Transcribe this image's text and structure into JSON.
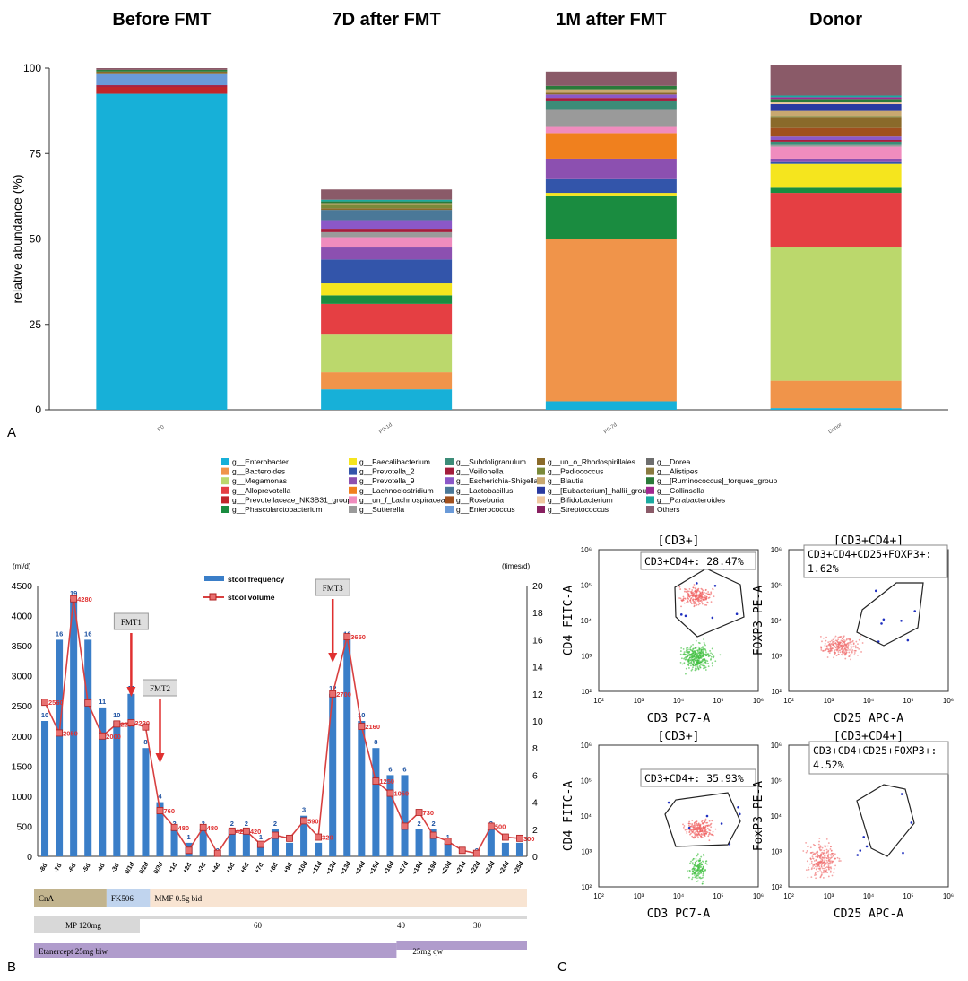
{
  "panel_labels": [
    "A",
    "B",
    "C"
  ],
  "chart_data": [
    {
      "type": "bar",
      "subtype": "stacked-100",
      "column_titles": [
        "Before FMT",
        "7D after FMT",
        "1M after FMT",
        "Donor"
      ],
      "categories": [
        "P0",
        "P0-1d",
        "P0-7d",
        "Donor"
      ],
      "ylabel": "relative abundance (%)",
      "ylim": [
        0,
        100
      ],
      "yticks": [
        0,
        25,
        50,
        75,
        100
      ],
      "legend_position": "below",
      "series": [
        {
          "name": "g__Enterobacter",
          "color": "#17b0d8",
          "values": [
            92.5,
            6,
            2.5,
            0.5
          ]
        },
        {
          "name": "g__Bacteroides",
          "color": "#f0944a",
          "values": [
            0,
            5,
            47.5,
            8
          ]
        },
        {
          "name": "g__Megamonas",
          "color": "#bbd86c",
          "values": [
            0,
            11,
            0,
            39
          ]
        },
        {
          "name": "g__Alloprevotella",
          "color": "#e53f43",
          "values": [
            0,
            9,
            0,
            16
          ]
        },
        {
          "name": "g__Prevotellaceae_NK3B31_group",
          "color": "#c0262b",
          "values": [
            2,
            0,
            0,
            0
          ]
        },
        {
          "name": "g__Phascolarctobacterium",
          "color": "#1a8c40",
          "values": [
            0,
            2.5,
            12.5,
            1.5
          ]
        },
        {
          "name": "g__Faecalibacterium",
          "color": "#f5e51e",
          "values": [
            0,
            3.5,
            1,
            7
          ]
        },
        {
          "name": "g__Prevotella_2",
          "color": "#3355aa",
          "values": [
            0,
            7,
            4,
            0.5
          ]
        },
        {
          "name": "g__Prevotella_9",
          "color": "#8c50b0",
          "values": [
            0,
            3.5,
            6,
            1
          ]
        },
        {
          "name": "g__Lachnoclostridium",
          "color": "#f0801e",
          "values": [
            0,
            0,
            7.5,
            0
          ]
        },
        {
          "name": "g__un_f_Lachnospiraceae",
          "color": "#f08cbe",
          "values": [
            0,
            3,
            1.8,
            3.5
          ]
        },
        {
          "name": "g__Sutterella",
          "color": "#9a9a9a",
          "values": [
            0,
            1.5,
            5,
            0.5
          ]
        },
        {
          "name": "g__Subdoligranulum",
          "color": "#3c8c78",
          "values": [
            0,
            0,
            2.5,
            1
          ]
        },
        {
          "name": "g__Veillonella",
          "color": "#a31c3c",
          "values": [
            0.5,
            1,
            1,
            0.5
          ]
        },
        {
          "name": "g__Escherichia-Shigella",
          "color": "#8b58c8",
          "values": [
            0,
            2.5,
            1,
            1
          ]
        },
        {
          "name": "g__Lactobacillus",
          "color": "#4a7898",
          "values": [
            0,
            3,
            0,
            0
          ]
        },
        {
          "name": "g__Roseburia",
          "color": "#a0501e",
          "values": [
            0,
            0,
            0,
            2.5
          ]
        },
        {
          "name": "g__Enterococcus",
          "color": "#6a9ad8",
          "values": [
            3.5,
            0,
            0,
            0
          ]
        },
        {
          "name": "g__un_o_Rhodospirillales",
          "color": "#8a6a2a",
          "values": [
            0.5,
            0.5,
            0.5,
            3
          ]
        },
        {
          "name": "g__Pediococcus",
          "color": "#7a8a3a",
          "values": [
            0,
            1,
            0,
            0.5
          ]
        },
        {
          "name": "g__Blautia",
          "color": "#c8a870",
          "values": [
            0,
            0.5,
            1,
            1.5
          ]
        },
        {
          "name": "g__[Eubacterium]_hallii_group",
          "color": "#2a3aa0",
          "values": [
            0,
            0,
            0,
            2
          ]
        },
        {
          "name": "g__Bifidobacterium",
          "color": "#f0c8a0",
          "values": [
            0,
            0,
            0,
            0.5
          ]
        },
        {
          "name": "g__Streptococcus",
          "color": "#882060",
          "values": [
            0,
            0,
            0,
            0
          ]
        },
        {
          "name": "g__Dorea",
          "color": "#6e6e6e",
          "values": [
            0,
            0,
            0,
            0
          ]
        },
        {
          "name": "g__Alistipes",
          "color": "#8a7a40",
          "values": [
            0,
            0,
            0,
            0
          ]
        },
        {
          "name": "g__[Ruminococcus]_torques_group",
          "color": "#2a7a3a",
          "values": [
            0.5,
            0.5,
            1,
            1
          ]
        },
        {
          "name": "g__Collinsella",
          "color": "#a02890",
          "values": [
            0,
            0,
            0,
            0.5
          ]
        },
        {
          "name": "g__Parabacteroides",
          "color": "#1aaaa0",
          "values": [
            0,
            0.5,
            0,
            0.5
          ]
        },
        {
          "name": "Others",
          "color": "#8a5a68",
          "values": [
            0.5,
            3,
            4.2,
            9
          ]
        }
      ]
    },
    {
      "type": "bar",
      "subtype": "bar-line-combo",
      "legend_position": "top",
      "left_unit": "(ml/d)",
      "right_unit": "(times/d)",
      "ylim_left": [
        0,
        4500
      ],
      "yticks_left": [
        0,
        500,
        1000,
        1500,
        2000,
        2500,
        3000,
        3500,
        4000,
        4500
      ],
      "ylim_right": [
        0,
        20
      ],
      "yticks_right": [
        0,
        2,
        4,
        6,
        8,
        10,
        12,
        14,
        16,
        18,
        20
      ],
      "categories": [
        "-8d",
        "-7d",
        "-6d",
        "-5d",
        "-4d",
        "-3d",
        "0/1d",
        "0/2d",
        "0/3d",
        "+1d",
        "+2d",
        "+3d",
        "+4d",
        "+5d",
        "+6d",
        "+7d",
        "+8d",
        "+9d",
        "+10d",
        "+11d",
        "+12d",
        "+13d",
        "+14d",
        "+15d",
        "+16d",
        "+17d",
        "+18d",
        "+19d",
        "+20d",
        "+21d",
        "+22d",
        "+23d",
        "+24d",
        "+25d"
      ],
      "series": [
        {
          "name": "stool frequency",
          "type": "bar",
          "axis": "right",
          "color": "#3a7ec8",
          "values": [
            10,
            16,
            19,
            16,
            11,
            10,
            12,
            8,
            4,
            2,
            1,
            2,
            0,
            2,
            2,
            1,
            2,
            1,
            3,
            1,
            12,
            16,
            10,
            8,
            6,
            6,
            2,
            2,
            1,
            0,
            0,
            2,
            1,
            1
          ],
          "labels": [
            "10",
            "16",
            "19",
            "16",
            "11",
            "10",
            "12",
            "8",
            "4",
            "2",
            "1",
            "2",
            "0",
            "2",
            "2",
            "1",
            "2",
            "1",
            "3",
            "1",
            "12",
            "16",
            "10",
            "8",
            "6",
            "6",
            "2",
            "2",
            "1",
            "0",
            "0",
            "2",
            "1",
            "1"
          ]
        },
        {
          "name": "stool volume",
          "type": "line",
          "axis": "left",
          "color": "#d84040",
          "values": [
            2560,
            2050,
            4280,
            2550,
            2000,
            2200,
            2220,
            2150,
            760,
            480,
            100,
            480,
            50,
            420,
            420,
            200,
            350,
            300,
            590,
            320,
            2700,
            3650,
            2160,
            1250,
            1050,
            500,
            730,
            350,
            250,
            100,
            50,
            500,
            320,
            300
          ],
          "labels": [
            "2560",
            "2050",
            "4280",
            "",
            "2000",
            "2200",
            "2220",
            "",
            "760",
            "480",
            "",
            "480",
            "",
            "420",
            "420",
            "",
            "",
            "",
            "590",
            "320",
            "2700",
            "3650",
            "2160",
            "1250",
            "1050",
            "",
            "730",
            "",
            "",
            "",
            "",
            "500",
            "",
            "300"
          ]
        }
      ],
      "annotations": [
        {
          "label": "FMT1",
          "index": 6
        },
        {
          "label": "FMT2",
          "index": 8
        },
        {
          "label": "FMT3",
          "index": 20
        }
      ],
      "therapy_bars": [
        {
          "row": 0,
          "segments": [
            {
              "label": "CnA",
              "from": 0,
              "to": 5,
              "color": "#c2b48e"
            },
            {
              "label": "FK506",
              "from": 5,
              "to": 8,
              "color": "#c0d4ee"
            },
            {
              "label": "MMF 0.5g bid",
              "from": 8,
              "to": 34,
              "color": "#f8e4d2"
            }
          ]
        },
        {
          "row": 1,
          "label": "MP 120mg",
          "color": "#d8d8d8",
          "doses": [
            "60",
            "40",
            "30"
          ]
        },
        {
          "row": 2,
          "segments": [
            {
              "label": "Etanercept 25mg biw",
              "from": 0,
              "to": 25,
              "color": "#b09ccc"
            },
            {
              "label": "25mg qw",
              "from": 25,
              "to": 34,
              "color": "#b09ccc"
            }
          ]
        }
      ]
    },
    {
      "type": "scatter",
      "subtype": "flow-cytometry",
      "plots": [
        {
          "title": "[CD3+]",
          "xlabel": "CD3 PC7-A",
          "ylabel": "CD4 FITC-A",
          "gate_label": "CD3+CD4+: 28.47%"
        },
        {
          "title": "[CD3+CD4+]",
          "xlabel": "CD25 APC-A",
          "ylabel": "FOXP3 PE-A",
          "gate_label": "CD3+CD4+CD25+FOXP3+:\n1.62%"
        },
        {
          "title": "[CD3+]",
          "xlabel": "CD3 PC7-A",
          "ylabel": "CD4 FITC-A",
          "gate_label": "CD3+CD4+: 35.93%"
        },
        {
          "title": "[CD3+CD4+]",
          "xlabel": "CD25 APC-A",
          "ylabel": "FoxP3 PE-A",
          "gate_label": "CD3+CD4+CD25+FOXP3+:\n4.52%"
        }
      ],
      "log_axes": true,
      "ticks": [
        "10²",
        "10³",
        "10⁴",
        "10⁵",
        "10⁶"
      ]
    }
  ]
}
